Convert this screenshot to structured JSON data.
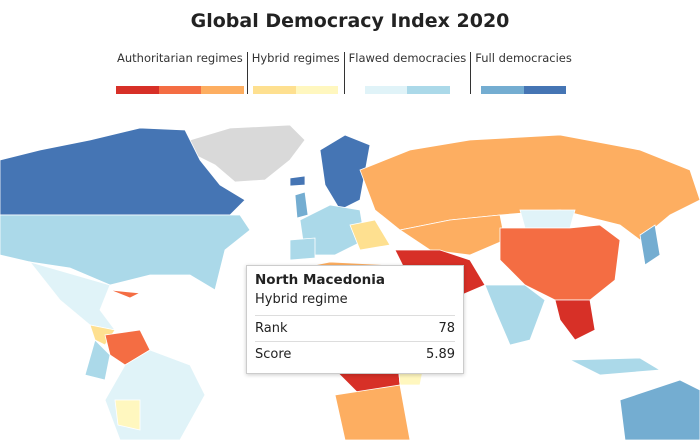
{
  "title": "Global Democracy Index 2020",
  "legend": [
    {
      "label": "Authoritarian regimes",
      "colors": [
        "#d73027",
        "#f46d43",
        "#fdae61"
      ]
    },
    {
      "label": "Hybrid regimes",
      "colors": [
        "#fee090",
        "#fff7bf"
      ]
    },
    {
      "label": "Flawed democracies",
      "colors": [
        "#e0f3f8",
        "#abd9e9"
      ]
    },
    {
      "label": "Full democracies",
      "colors": [
        "#74add1",
        "#4575b4"
      ]
    }
  ],
  "tooltip": {
    "country": "North Macedonia",
    "category": "Hybrid regime",
    "rows": [
      {
        "label": "Rank",
        "value": 78
      },
      {
        "label": "Score",
        "value": 5.89
      }
    ]
  }
}
